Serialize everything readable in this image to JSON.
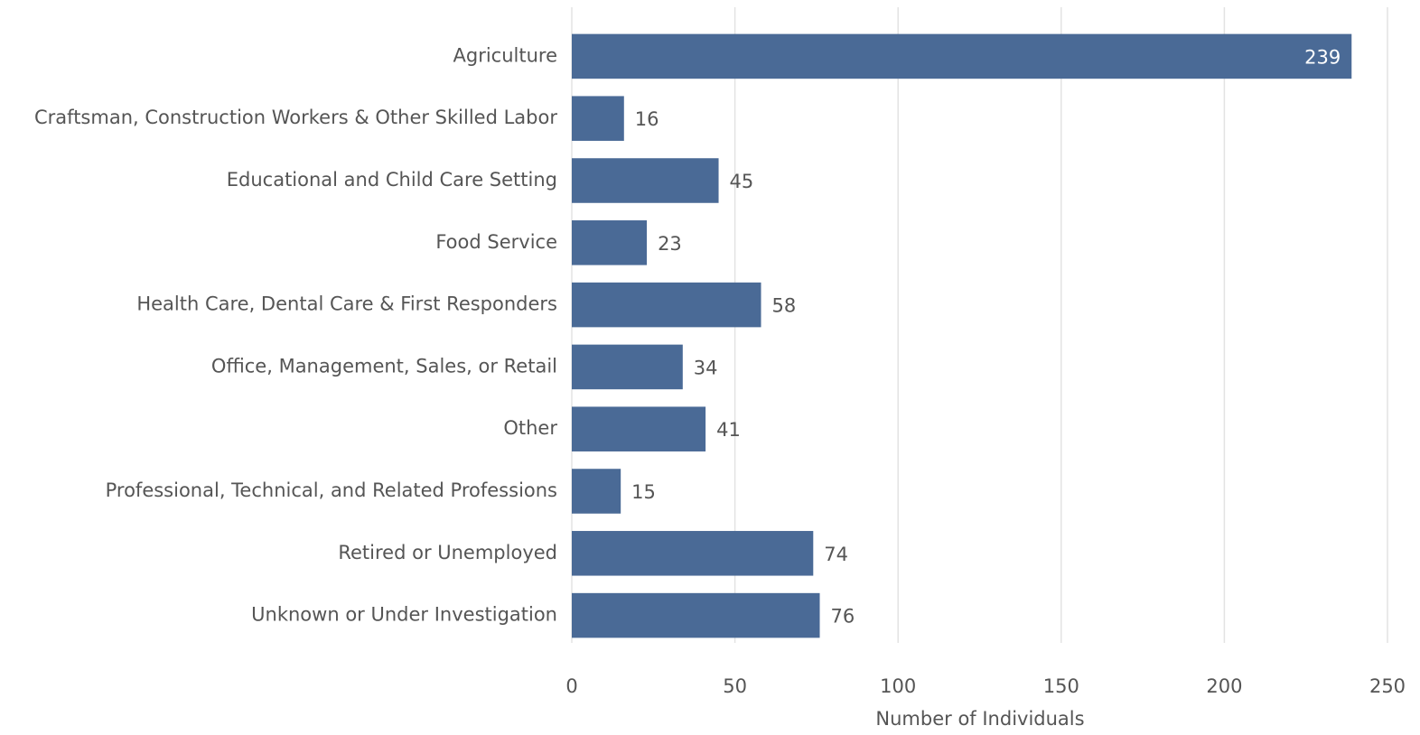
{
  "chart_data": {
    "type": "bar",
    "orientation": "horizontal",
    "x_label": "Number of Individuals",
    "categories": [
      "Agriculture",
      "Craftsman, Construction Workers & Other Skilled Labor",
      "Educational and Child Care Setting",
      "Food Service",
      "Health Care, Dental Care & First Responders",
      "Office, Management, Sales, or Retail",
      "Other",
      "Professional, Technical, and Related Professions",
      "Retired or Unemployed",
      "Unknown or Under Investigation"
    ],
    "values": [
      239,
      16,
      45,
      23,
      58,
      34,
      41,
      15,
      74,
      76
    ],
    "color": "#4a6a96",
    "xlim": [
      0,
      250
    ],
    "xticks": [
      0,
      50,
      100,
      150,
      200,
      250
    ],
    "grid": true
  }
}
